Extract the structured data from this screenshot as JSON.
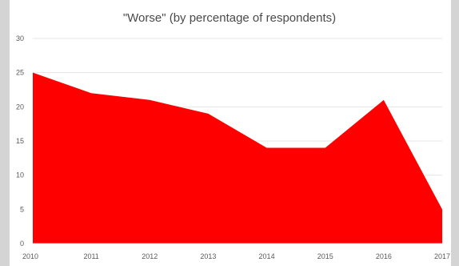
{
  "chart_data": {
    "type": "area",
    "title": "\"Worse\" (by percentage of respondents)",
    "x": [
      "2010",
      "2011",
      "2012",
      "2013",
      "2014",
      "2015",
      "2016",
      "2017"
    ],
    "series": [
      {
        "values": [
          25,
          22,
          21,
          19,
          14,
          14,
          21,
          5
        ]
      }
    ],
    "y_ticks": [
      0,
      5,
      10,
      15,
      20,
      25,
      30
    ],
    "ylim": [
      0,
      30
    ],
    "xlabel": "",
    "ylabel": "",
    "grid": true,
    "legend": "none",
    "fill_color": "#ff0000",
    "grid_color": "#e6e6e6",
    "background_color": "#ffffff",
    "frame_color": "#d4d4d4"
  }
}
